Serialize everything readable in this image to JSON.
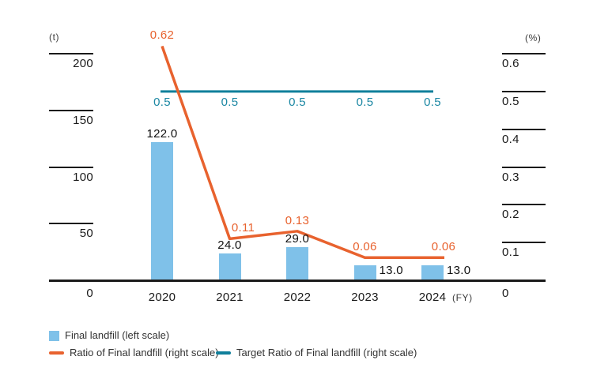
{
  "chart_data": {
    "type": "bar",
    "subtype": "dual-axis bar + line combo",
    "categories": [
      "2020",
      "2021",
      "2022",
      "2023",
      "2024"
    ],
    "series": [
      {
        "name": "Final landfill (left scale)",
        "type": "bar",
        "axis": "left",
        "values": [
          122.0,
          24.0,
          29.0,
          13.0,
          13.0
        ],
        "labels": [
          "122.0",
          "24.0",
          "29.0",
          "13.0",
          "13.0"
        ],
        "color": "#7fc1e9"
      },
      {
        "name": "Ratio of Final landfill (right scale)",
        "type": "line",
        "axis": "right",
        "values": [
          0.62,
          0.11,
          0.13,
          0.06,
          0.06
        ],
        "labels": [
          "0.62",
          "0.11",
          "0.13",
          "0.06",
          "0.06"
        ],
        "color": "#e8622e"
      },
      {
        "name": "Target Ratio of Final landfill (right scale)",
        "type": "line",
        "axis": "right",
        "values": [
          0.5,
          0.5,
          0.5,
          0.5,
          0.5
        ],
        "labels": [
          "0.5",
          "0.5",
          "0.5",
          "0.5",
          "0.5"
        ],
        "color": "#0f7f9b",
        "label_color": "#1b87a3"
      }
    ],
    "left_axis": {
      "unit": "(t)",
      "range": [
        0,
        200
      ],
      "ticks": [
        {
          "value": 200,
          "label": "200"
        },
        {
          "value": 150,
          "label": "150"
        },
        {
          "value": 100,
          "label": "100"
        },
        {
          "value": 50,
          "label": "50"
        },
        {
          "value": 0,
          "label": "0"
        }
      ]
    },
    "right_axis": {
      "unit": "(%)",
      "range": [
        0,
        0.6
      ],
      "ticks": [
        {
          "value": 0.6,
          "label": "0.6"
        },
        {
          "value": 0.5,
          "label": "0.5"
        },
        {
          "value": 0.4,
          "label": "0.4"
        },
        {
          "value": 0.3,
          "label": "0.3"
        },
        {
          "value": 0.2,
          "label": "0.2"
        },
        {
          "value": 0.1,
          "label": "0.1"
        },
        {
          "value": 0,
          "label": "0"
        }
      ]
    },
    "x_axis": {
      "unit": "(FY)"
    },
    "grid": "off",
    "legend_position": "bottom-left"
  },
  "legend": {
    "items": [
      {
        "label": "Final landfill (left scale)",
        "swatch": "square",
        "color": "#7fc1e9"
      },
      {
        "label": "Ratio of Final landfill (right scale)",
        "swatch": "line",
        "color": "#e8622e"
      },
      {
        "label": "Target Ratio of Final landfill (right scale)",
        "swatch": "line",
        "color": "#0f7f9b"
      }
    ]
  },
  "colors": {
    "bar": "#7fc1e9",
    "ratio_line": "#e8622e",
    "target_line": "#0f7f9b",
    "axis": "#1a1a1a"
  }
}
